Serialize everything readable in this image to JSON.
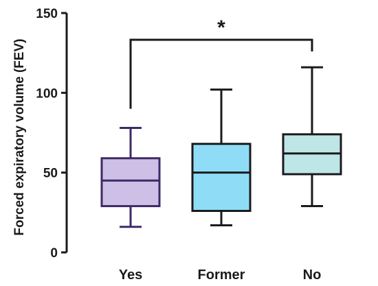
{
  "chart_data": {
    "type": "box",
    "categories": [
      "Yes",
      "Former",
      "No"
    ],
    "ylabel": "Forced expiratory volume (FEV)",
    "ylim": [
      0,
      150
    ],
    "yticks": [
      "0",
      "50",
      "100",
      "150"
    ],
    "boxes": [
      {
        "category": "Yes",
        "min": 16,
        "q1": 29,
        "median": 45,
        "q3": 59,
        "max": 78,
        "fill": "#cdbfe6",
        "stroke": "#3d2a66"
      },
      {
        "category": "Former",
        "min": 17,
        "q1": 26,
        "median": 50,
        "q3": 68,
        "max": 102,
        "fill": "#8fdcf7",
        "stroke": "#1a1a1a"
      },
      {
        "category": "No",
        "min": 29,
        "q1": 49,
        "median": 62,
        "q3": 74,
        "max": 116,
        "fill": "#bfe6e6",
        "stroke": "#1a1a1a"
      }
    ],
    "significance": {
      "from": "Yes",
      "to": "No",
      "label": "*"
    }
  }
}
